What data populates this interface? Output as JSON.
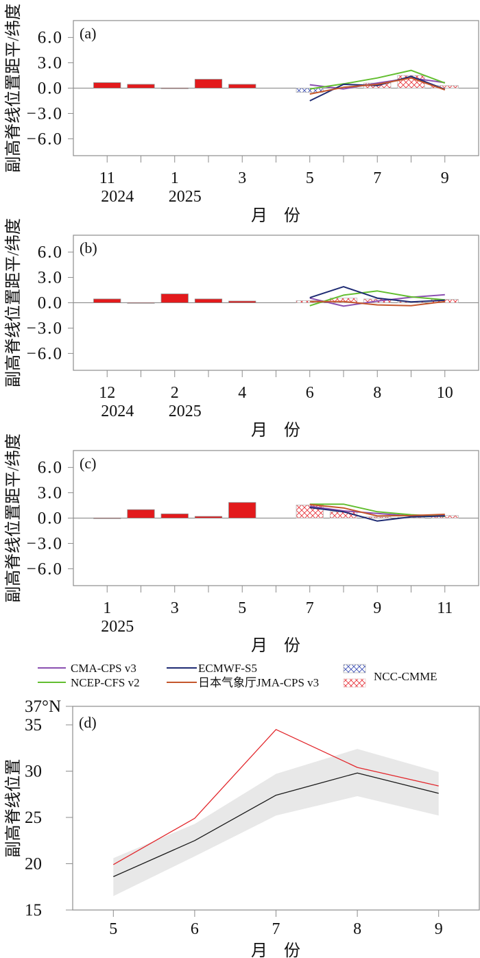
{
  "colors": {
    "observed_bar": "#E31A1C",
    "bar_outline": "#8C8C8C",
    "hatch_outline": "#B4B4B4",
    "axis": "#8C8C8C",
    "zero_line": "#808080"
  },
  "legend": {
    "items": [
      {
        "key": "cma-cps-v3",
        "label": "CMA-CPS v3",
        "color": "#8A4FB0",
        "kind": "line"
      },
      {
        "key": "ncep-cfs-v2",
        "label": "NCEP-CFS v2",
        "color": "#62BE2F",
        "kind": "line"
      },
      {
        "key": "ecmwf-s5",
        "label": "ECMWF-S5",
        "color": "#1E2B73",
        "kind": "line"
      },
      {
        "key": "jma-cps-v3",
        "label": "日本气象厅JMA-CPS v3",
        "color": "#C4562B",
        "kind": "line"
      },
      {
        "key": "ncc-cmme",
        "label": "NCC-CMME",
        "kind": "hatched-bar",
        "negative_color": "#3C4FB5",
        "positive_color": "#E8333A"
      }
    ]
  },
  "chart_data": [
    {
      "id": "a",
      "type": "bar+line",
      "panel_label": "(a)",
      "ylabel": "副高脊线位置距平/纬度",
      "xlabel": "月　份",
      "ylim": [
        -8,
        8
      ],
      "yticks": [
        6,
        3,
        0,
        -3,
        -6
      ],
      "ytick_labels": [
        "6.0",
        "3.0",
        "0.0",
        "−3.0",
        "−6.0"
      ],
      "grid": false,
      "months": [
        11,
        12,
        1,
        2,
        3,
        4,
        5,
        6,
        7,
        8,
        9
      ],
      "xtick_labels": [
        "11",
        "",
        "1",
        "",
        "3",
        "",
        "5",
        "",
        "7",
        "",
        "9"
      ],
      "year_labels": [
        "2024",
        "",
        "2025",
        "",
        "",
        "",
        "",
        "",
        "",
        "",
        ""
      ],
      "observed": [
        0.65,
        0.45,
        0.02,
        1.05,
        0.45,
        null,
        null,
        null,
        null,
        null,
        null
      ],
      "ncc_cmme": [
        null,
        null,
        null,
        null,
        null,
        null,
        -0.5,
        0.05,
        0.6,
        1.5,
        0.3
      ],
      "series": [
        {
          "key": "cma-cps-v3",
          "values": [
            null,
            null,
            null,
            null,
            null,
            null,
            0.4,
            -0.1,
            0.6,
            1.2,
            0.65
          ]
        },
        {
          "key": "ncep-cfs-v2",
          "values": [
            null,
            null,
            null,
            null,
            null,
            null,
            -0.1,
            0.5,
            1.2,
            2.1,
            0.6
          ]
        },
        {
          "key": "ecmwf-s5",
          "values": [
            null,
            null,
            null,
            null,
            null,
            null,
            -1.5,
            0.45,
            0.3,
            1.4,
            -0.15
          ]
        },
        {
          "key": "jma-cps-v3",
          "values": [
            null,
            null,
            null,
            null,
            null,
            null,
            -0.7,
            0.1,
            0.45,
            1.2,
            -0.2
          ]
        }
      ]
    },
    {
      "id": "b",
      "type": "bar+line",
      "panel_label": "(b)",
      "ylabel": "副高脊线位置距平/纬度",
      "xlabel": "月　份",
      "ylim": [
        -8,
        8
      ],
      "yticks": [
        6,
        3,
        0,
        -3,
        -6
      ],
      "ytick_labels": [
        "6.0",
        "3.0",
        "0.0",
        "−3.0",
        "−6.0"
      ],
      "grid": false,
      "months": [
        12,
        1,
        2,
        3,
        4,
        5,
        6,
        7,
        8,
        9,
        10
      ],
      "xtick_labels": [
        "12",
        "",
        "2",
        "",
        "4",
        "",
        "6",
        "",
        "8",
        "",
        "10"
      ],
      "year_labels": [
        "2024",
        "",
        "2025",
        "",
        "",
        "",
        "",
        "",
        "",
        "",
        ""
      ],
      "observed": [
        0.45,
        0.02,
        1.05,
        0.45,
        0.2,
        null,
        null,
        null,
        null,
        null,
        null
      ],
      "ncc_cmme": [
        null,
        null,
        null,
        null,
        null,
        null,
        0.25,
        0.55,
        0.45,
        0.15,
        0.4
      ],
      "series": [
        {
          "key": "cma-cps-v3",
          "values": [
            null,
            null,
            null,
            null,
            null,
            null,
            0.55,
            -0.4,
            0.2,
            0.65,
            0.95
          ]
        },
        {
          "key": "ncep-cfs-v2",
          "values": [
            null,
            null,
            null,
            null,
            null,
            null,
            -0.35,
            0.9,
            1.4,
            0.7,
            0.35
          ]
        },
        {
          "key": "ecmwf-s5",
          "values": [
            null,
            null,
            null,
            null,
            null,
            null,
            0.6,
            1.9,
            0.55,
            0.1,
            0.3
          ]
        },
        {
          "key": "jma-cps-v3",
          "values": [
            null,
            null,
            null,
            null,
            null,
            null,
            0.15,
            0.15,
            -0.25,
            -0.35,
            0.15
          ]
        }
      ]
    },
    {
      "id": "c",
      "type": "bar+line",
      "panel_label": "(c)",
      "ylabel": "副高脊线位置距平/纬度",
      "xlabel": "月　份",
      "ylim": [
        -8,
        8
      ],
      "yticks": [
        6,
        3,
        0,
        -3,
        -6
      ],
      "ytick_labels": [
        "6.0",
        "3.0",
        "0.0",
        "−3.0",
        "−6.0"
      ],
      "grid": false,
      "months": [
        1,
        2,
        3,
        4,
        5,
        6,
        7,
        8,
        9,
        10,
        11
      ],
      "xtick_labels": [
        "1",
        "",
        "3",
        "",
        "5",
        "",
        "7",
        "",
        "9",
        "",
        "11"
      ],
      "year_labels": [
        "2025",
        "",
        "",
        "",
        "",
        "",
        "",
        "",
        "",
        "",
        ""
      ],
      "observed": [
        0.02,
        1.0,
        0.5,
        0.2,
        1.85,
        null,
        null,
        null,
        null,
        null,
        null
      ],
      "ncc_cmme": [
        null,
        null,
        null,
        null,
        null,
        null,
        1.55,
        0.75,
        0.15,
        0.1,
        0.3
      ],
      "series": [
        {
          "key": "cma-cps-v3",
          "values": [
            null,
            null,
            null,
            null,
            null,
            null,
            1.4,
            0.85,
            0.55,
            0.25,
            0.3
          ]
        },
        {
          "key": "ncep-cfs-v2",
          "values": [
            null,
            null,
            null,
            null,
            null,
            null,
            1.65,
            1.65,
            0.75,
            0.4,
            0.2
          ]
        },
        {
          "key": "ecmwf-s5",
          "values": [
            null,
            null,
            null,
            null,
            null,
            null,
            1.25,
            0.75,
            -0.35,
            0.15,
            0.25
          ]
        },
        {
          "key": "jma-cps-v3",
          "values": [
            null,
            null,
            null,
            null,
            null,
            null,
            1.6,
            1.2,
            0.25,
            0.3,
            0.45
          ]
        }
      ]
    },
    {
      "id": "d",
      "type": "line",
      "panel_label": "(d)",
      "ylabel": "副高脊线位置",
      "xlabel": "月　份",
      "x": [
        5,
        6,
        7,
        8,
        9
      ],
      "xlim": [
        4.5,
        9.5
      ],
      "xtick_labels": [
        "5",
        "6",
        "7",
        "8",
        "9"
      ],
      "ylim": [
        15,
        37
      ],
      "yticks": [
        15,
        20,
        25,
        30,
        35,
        37
      ],
      "ytick_labels": [
        "15",
        "20",
        "25",
        "30",
        "35",
        "37°N"
      ],
      "grid": false,
      "band": {
        "color": "#E8E8E8",
        "upper": [
          20.6,
          24.3,
          29.7,
          32.4,
          29.9
        ],
        "lower": [
          16.5,
          20.8,
          25.2,
          27.3,
          25.2
        ]
      },
      "series": [
        {
          "key": "red-line",
          "color": "#E2262B",
          "values": [
            19.9,
            24.9,
            34.5,
            30.4,
            28.4
          ]
        },
        {
          "key": "black-line",
          "color": "#1A1A1A",
          "values": [
            18.6,
            22.5,
            27.4,
            29.8,
            27.6
          ]
        }
      ]
    }
  ]
}
